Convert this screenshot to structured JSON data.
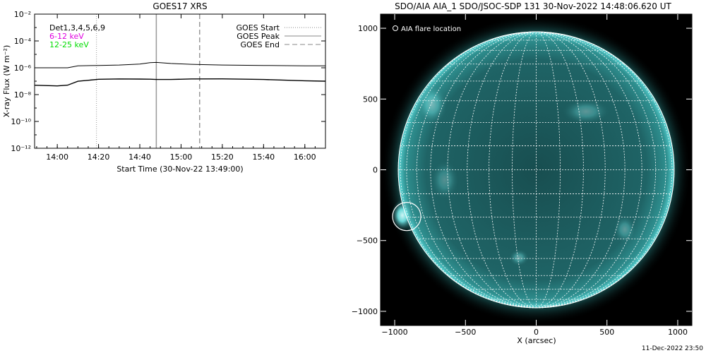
{
  "chart_data": [
    {
      "type": "line",
      "title": "GOES17 XRS",
      "xlabel": "Start Time (30-Nov-22 13:49:00)",
      "ylabel": "X-ray Flux (W m⁻²)",
      "yscale": "log",
      "ylim": [
        1e-12,
        0.01
      ],
      "xlim": [
        "13:49",
        "16:10"
      ],
      "x_ticks": [
        "14:00",
        "14:20",
        "14:40",
        "15:00",
        "15:20",
        "15:40",
        "16:00"
      ],
      "y_ticks": [
        "10⁻¹²",
        "10⁻¹⁰",
        "10⁻⁸",
        "10⁻⁶",
        "10⁻⁴",
        "10⁻²"
      ],
      "legend_left": [
        {
          "text": "Det1,3,4,5,6,9",
          "color": "#000000"
        },
        {
          "text": "6-12 keV",
          "color": "#e000e0"
        },
        {
          "text": "12-25 keV",
          "color": "#00dd00"
        }
      ],
      "legend_right": [
        {
          "text": "GOES Start",
          "style": "dotted"
        },
        {
          "text": "GOES Peak",
          "style": "solid"
        },
        {
          "text": "GOES End",
          "style": "dashed"
        }
      ],
      "event_times": {
        "start": "14:19",
        "peak": "14:48",
        "end": "15:09"
      },
      "series": [
        {
          "color": "#000000",
          "x": [
            "13:49",
            "14:00",
            "14:05",
            "14:10",
            "14:20",
            "14:30",
            "14:40",
            "14:45",
            "14:48",
            "14:55",
            "15:05",
            "15:20",
            "15:40",
            "16:00",
            "16:10"
          ],
          "values": [
            1e-06,
            1e-06,
            1e-06,
            1.4e-06,
            1.5e-06,
            1.6e-06,
            1.9e-06,
            2.4e-06,
            2.5e-06,
            2.1e-06,
            1.8e-06,
            1.6e-06,
            1.5e-06,
            1.4e-06,
            1.4e-06
          ]
        },
        {
          "color": "#000000",
          "x": [
            "13:49",
            "14:00",
            "14:05",
            "14:10",
            "14:20",
            "14:30",
            "14:40",
            "14:45",
            "14:48",
            "14:55",
            "15:05",
            "15:20",
            "15:40",
            "16:00",
            "16:10"
          ],
          "values": [
            5e-08,
            5.2e-08,
            6e-08,
            1e-07,
            1.2e-07,
            1.25e-07,
            1.4e-07,
            1.6e-07,
            1.6e-07,
            1.4e-07,
            1.3e-07,
            1.25e-07,
            1.25e-07,
            1.2e-07,
            1.2e-07
          ]
        }
      ]
    },
    {
      "type": "image",
      "title": "SDO/AIA AIA_1 SDO/JSOC-SDP 131 30-Nov-2022 14:48:06.620 UT",
      "xlabel": "X (arcsec)",
      "xlim": [
        -1100,
        1100
      ],
      "ylim": [
        -1100,
        1100
      ],
      "x_ticks": [
        -1000,
        -500,
        0,
        500,
        1000
      ],
      "y_ticks": [
        -1000,
        -500,
        0,
        500,
        1000
      ],
      "legend": "AIA flare location",
      "flare_location": [
        -915,
        -330
      ],
      "solar_radius_arcsec": 975,
      "grid_spacing_deg": 10
    }
  ],
  "footer": {
    "timestamp": "11-Dec-2022 23:50"
  },
  "colors": {
    "sun": "#1e6e6e",
    "disk_edge": "#4fd0d0",
    "background": "#000000"
  }
}
